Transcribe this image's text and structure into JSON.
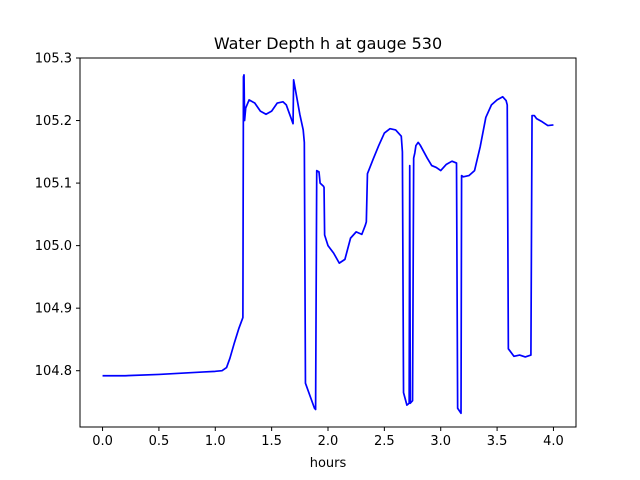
{
  "chart_data": {
    "type": "line",
    "title": "Water Depth h at gauge 530",
    "xlabel": "hours",
    "ylabel": "",
    "xlim": [
      -0.2,
      4.2
    ],
    "ylim": [
      104.71,
      105.3
    ],
    "grid": false,
    "legend": "none",
    "x_ticks": [
      {
        "value": 0.0,
        "label": "0.0"
      },
      {
        "value": 0.5,
        "label": "0.5"
      },
      {
        "value": 1.0,
        "label": "1.0"
      },
      {
        "value": 1.5,
        "label": "1.5"
      },
      {
        "value": 2.0,
        "label": "2.0"
      },
      {
        "value": 2.5,
        "label": "2.5"
      },
      {
        "value": 3.0,
        "label": "3.0"
      },
      {
        "value": 3.5,
        "label": "3.5"
      },
      {
        "value": 4.0,
        "label": "4.0"
      }
    ],
    "y_ticks": [
      {
        "value": 104.8,
        "label": "104.8"
      },
      {
        "value": 104.9,
        "label": "104.9"
      },
      {
        "value": 105.0,
        "label": "105.0"
      },
      {
        "value": 105.1,
        "label": "105.1"
      },
      {
        "value": 105.2,
        "label": "105.2"
      },
      {
        "value": 105.3,
        "label": "105.3"
      }
    ],
    "series": [
      {
        "color": "#0000ff",
        "x": [
          0.0,
          0.2,
          0.5,
          0.7,
          0.9,
          1.0,
          1.06,
          1.1,
          1.13,
          1.17,
          1.21,
          1.245,
          1.25,
          1.255,
          1.26,
          1.27,
          1.3,
          1.35,
          1.4,
          1.45,
          1.5,
          1.55,
          1.6,
          1.63,
          1.66,
          1.69,
          1.695,
          1.72,
          1.75,
          1.78,
          1.79,
          1.8,
          1.84,
          1.88,
          1.89,
          1.9,
          1.92,
          1.93,
          1.96,
          1.965,
          1.97,
          2.0,
          2.05,
          2.1,
          2.15,
          2.2,
          2.25,
          2.3,
          2.33,
          2.34,
          2.35,
          2.4,
          2.45,
          2.5,
          2.55,
          2.6,
          2.65,
          2.66,
          2.67,
          2.7,
          2.72,
          2.725,
          2.73,
          2.75,
          2.76,
          2.77,
          2.78,
          2.8,
          2.82,
          2.85,
          2.88,
          2.92,
          2.96,
          3.0,
          3.05,
          3.1,
          3.14,
          3.15,
          3.18,
          3.185,
          3.2,
          3.25,
          3.3,
          3.35,
          3.4,
          3.45,
          3.5,
          3.55,
          3.58,
          3.59,
          3.6,
          3.65,
          3.7,
          3.75,
          3.8,
          3.81,
          3.83,
          3.85,
          3.9,
          3.95,
          4.0
        ],
        "y": [
          104.792,
          104.792,
          104.794,
          104.796,
          104.798,
          104.799,
          104.8,
          104.805,
          104.82,
          104.845,
          104.868,
          104.885,
          105.27,
          105.273,
          105.2,
          105.22,
          105.233,
          105.228,
          105.215,
          105.21,
          105.215,
          105.228,
          105.23,
          105.225,
          105.21,
          105.195,
          105.265,
          105.24,
          105.21,
          105.185,
          105.165,
          104.78,
          104.76,
          104.74,
          104.738,
          105.12,
          105.118,
          105.1,
          105.095,
          105.093,
          105.017,
          105.0,
          104.988,
          104.972,
          104.978,
          105.012,
          105.022,
          105.018,
          105.032,
          105.038,
          105.115,
          105.138,
          105.16,
          105.18,
          105.187,
          105.185,
          105.175,
          105.15,
          104.765,
          104.745,
          104.748,
          105.128,
          104.748,
          104.752,
          105.14,
          105.148,
          105.16,
          105.165,
          105.16,
          105.15,
          105.14,
          105.128,
          105.125,
          105.12,
          105.13,
          105.135,
          105.132,
          104.74,
          104.732,
          105.112,
          105.11,
          105.112,
          105.12,
          105.158,
          105.205,
          105.225,
          105.233,
          105.238,
          105.232,
          105.225,
          104.835,
          104.823,
          104.825,
          104.822,
          104.825,
          105.208,
          105.208,
          105.203,
          105.198,
          105.192,
          105.193
        ]
      }
    ]
  }
}
